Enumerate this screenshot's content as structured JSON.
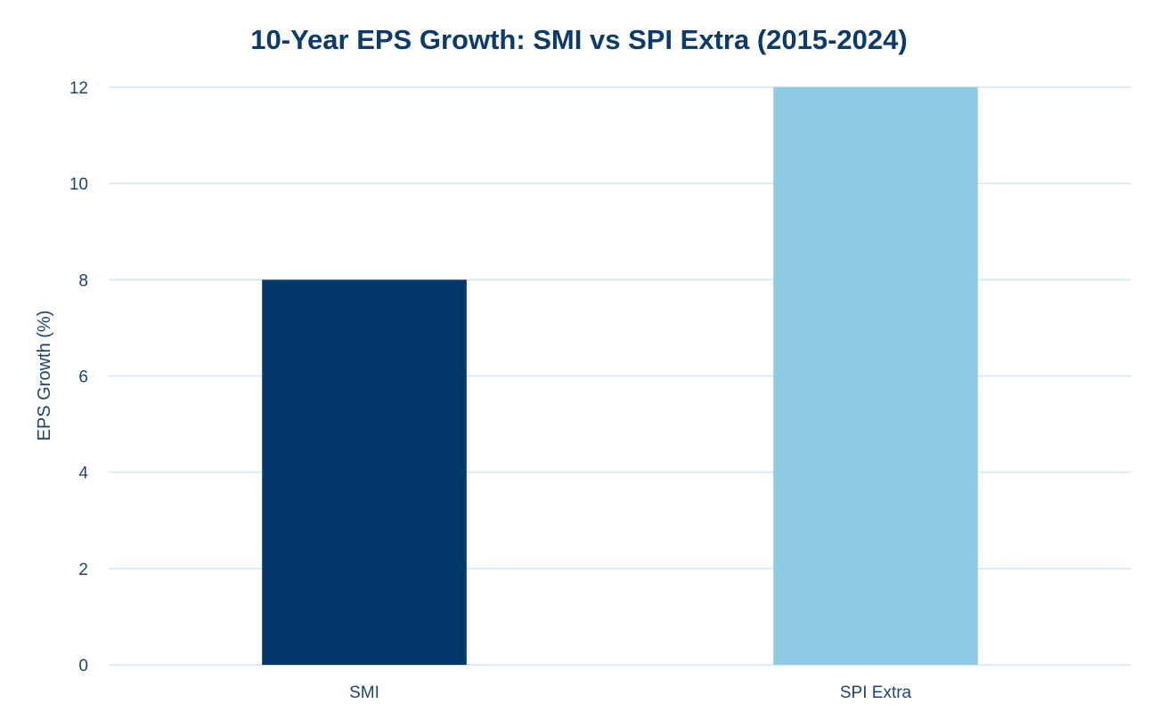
{
  "chart_data": {
    "type": "bar",
    "title": "10-Year EPS Growth: SMI vs SPI Extra (2015-2024)",
    "xlabel": "",
    "ylabel": "EPS Growth (%)",
    "categories": [
      "SMI",
      "SPI Extra"
    ],
    "values": [
      8,
      12
    ],
    "colors": [
      "#03386b",
      "#8ecbe2"
    ],
    "ylim": [
      0,
      12
    ],
    "yticks": [
      "0",
      "2",
      "4",
      "6",
      "8",
      "10",
      "12"
    ],
    "grid": true,
    "gridColor": "#cfe6f5",
    "legend": "none"
  }
}
